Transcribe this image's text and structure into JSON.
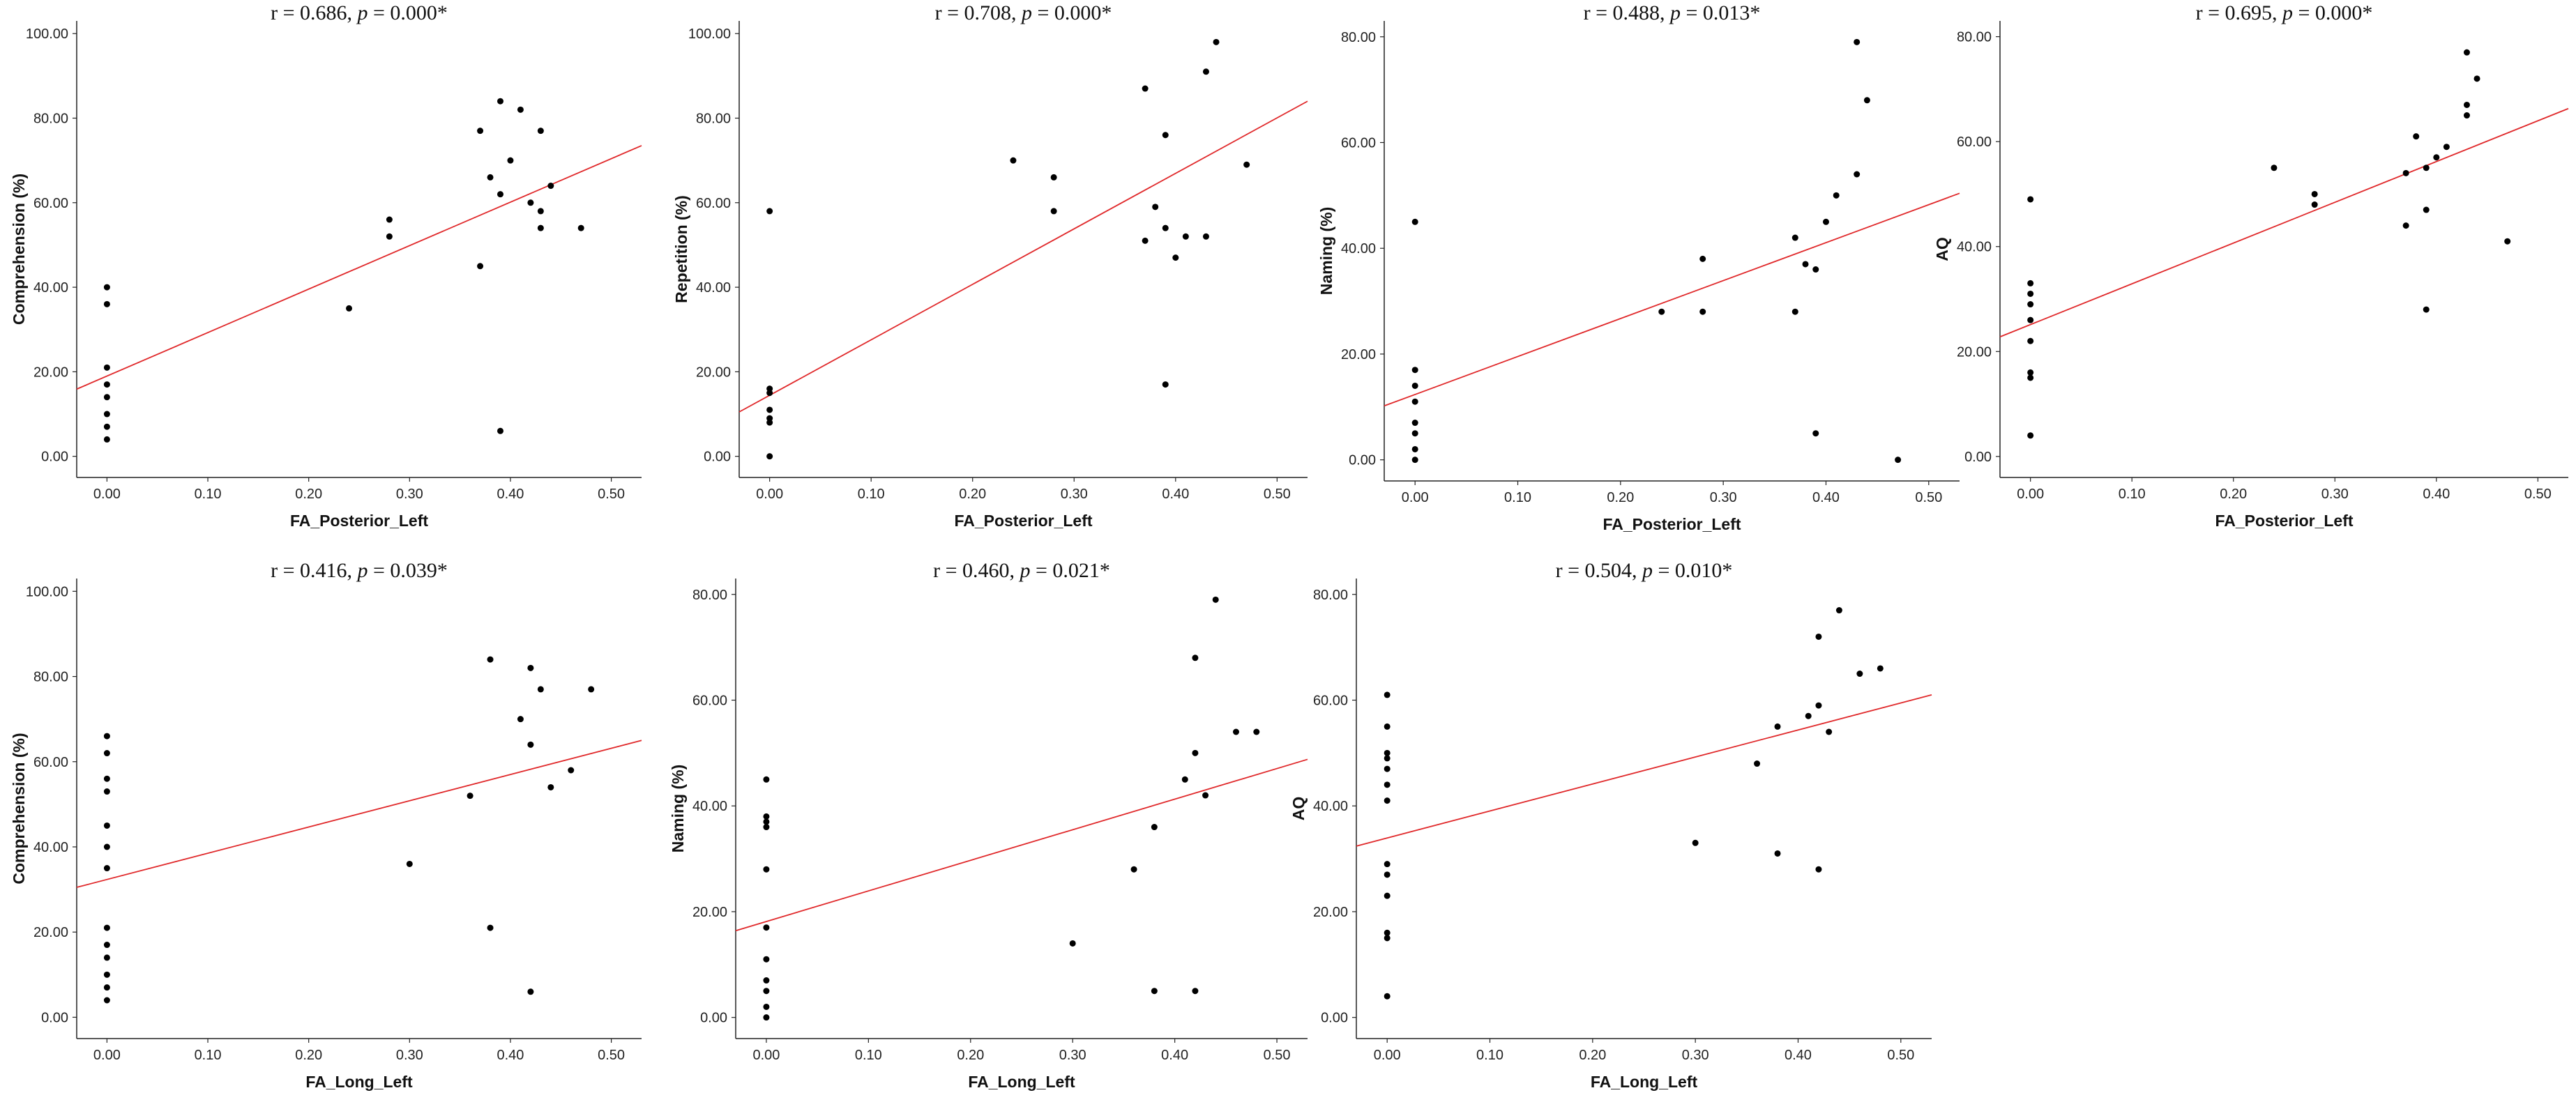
{
  "chart_data": [
    {
      "type": "scatter",
      "title": {
        "prefix": "r = 0.686, ",
        "p_label": "p",
        "suffix": " = 0.000*"
      },
      "xlabel": "FA_Posterior_Left",
      "ylabel": "Comprehension (%)",
      "xlim": [
        -0.03,
        0.53
      ],
      "ylim": [
        -5,
        103
      ],
      "xticks": [
        0,
        0.1,
        0.2,
        0.3,
        0.4,
        0.5
      ],
      "xtick_labels": [
        "0.00",
        "0.10",
        "0.20",
        "0.30",
        "0.40",
        "0.50"
      ],
      "yticks": [
        0,
        20,
        40,
        60,
        80,
        100
      ],
      "ytick_labels": [
        "0.00",
        "20.00",
        "40.00",
        "60.00",
        "80.00",
        "100.00"
      ],
      "points": [
        [
          0,
          40
        ],
        [
          0,
          36
        ],
        [
          0,
          21
        ],
        [
          0,
          17
        ],
        [
          0,
          14
        ],
        [
          0,
          10
        ],
        [
          0,
          7
        ],
        [
          0,
          4
        ],
        [
          0.24,
          35
        ],
        [
          0.28,
          56
        ],
        [
          0.28,
          52
        ],
        [
          0.37,
          77
        ],
        [
          0.37,
          45
        ],
        [
          0.38,
          66
        ],
        [
          0.39,
          84
        ],
        [
          0.39,
          62
        ],
        [
          0.39,
          6
        ],
        [
          0.4,
          70
        ],
        [
          0.41,
          82
        ],
        [
          0.42,
          60
        ],
        [
          0.43,
          77
        ],
        [
          0.43,
          58
        ],
        [
          0.43,
          54
        ],
        [
          0.44,
          64
        ],
        [
          0.47,
          54
        ]
      ],
      "fit_line": {
        "x": [
          -0.03,
          0.53
        ],
        "y": [
          15.9,
          73.5
        ]
      },
      "point_color": "#000000",
      "line_color": "#e0282a"
    },
    {
      "type": "scatter",
      "title": {
        "prefix": "r = 0.708, ",
        "p_label": "p",
        "suffix": " = 0.000*"
      },
      "xlabel": "FA_Posterior_Left",
      "ylabel": "Repetition (%)",
      "xlim": [
        -0.03,
        0.53
      ],
      "ylim": [
        -5,
        103
      ],
      "xticks": [
        0,
        0.1,
        0.2,
        0.3,
        0.4,
        0.5
      ],
      "xtick_labels": [
        "0.00",
        "0.10",
        "0.20",
        "0.30",
        "0.40",
        "0.50"
      ],
      "yticks": [
        0,
        20,
        40,
        60,
        80,
        100
      ],
      "ytick_labels": [
        "0.00",
        "20.00",
        "40.00",
        "60.00",
        "80.00",
        "100.00"
      ],
      "points": [
        [
          0,
          58
        ],
        [
          0,
          16
        ],
        [
          0,
          15
        ],
        [
          0,
          11
        ],
        [
          0,
          9
        ],
        [
          0,
          8
        ],
        [
          0,
          0
        ],
        [
          0.24,
          70
        ],
        [
          0.28,
          66
        ],
        [
          0.28,
          58
        ],
        [
          0.37,
          87
        ],
        [
          0.37,
          51
        ],
        [
          0.38,
          59
        ],
        [
          0.39,
          76
        ],
        [
          0.39,
          54
        ],
        [
          0.39,
          17
        ],
        [
          0.4,
          47
        ],
        [
          0.41,
          52
        ],
        [
          0.43,
          91
        ],
        [
          0.43,
          52
        ],
        [
          0.44,
          98
        ],
        [
          0.47,
          69
        ]
      ],
      "fit_line": {
        "x": [
          -0.03,
          0.53
        ],
        "y": [
          10.5,
          84
        ]
      },
      "point_color": "#000000",
      "line_color": "#e0282a"
    },
    {
      "type": "scatter",
      "title": {
        "prefix": "r = 0.488, ",
        "p_label": "p",
        "suffix": " = 0.013*"
      },
      "xlabel": "FA_Posterior_Left",
      "ylabel": "Naming (%)",
      "xlim": [
        -0.03,
        0.53
      ],
      "ylim": [
        -4,
        83
      ],
      "xticks": [
        0,
        0.1,
        0.2,
        0.3,
        0.4,
        0.5
      ],
      "xtick_labels": [
        "0.00",
        "0.10",
        "0.20",
        "0.30",
        "0.40",
        "0.50"
      ],
      "yticks": [
        0,
        20,
        40,
        60,
        80
      ],
      "ytick_labels": [
        "0.00",
        "20.00",
        "40.00",
        "60.00",
        "80.00"
      ],
      "points": [
        [
          0,
          45
        ],
        [
          0,
          17
        ],
        [
          0,
          14
        ],
        [
          0,
          11
        ],
        [
          0,
          7
        ],
        [
          0,
          5
        ],
        [
          0,
          2
        ],
        [
          0,
          0
        ],
        [
          0.24,
          28
        ],
        [
          0.28,
          38
        ],
        [
          0.28,
          28
        ],
        [
          0.37,
          42
        ],
        [
          0.37,
          28
        ],
        [
          0.38,
          37
        ],
        [
          0.39,
          36
        ],
        [
          0.39,
          5
        ],
        [
          0.4,
          45
        ],
        [
          0.41,
          50
        ],
        [
          0.43,
          79
        ],
        [
          0.43,
          54
        ],
        [
          0.44,
          68
        ],
        [
          0.47,
          0
        ]
      ],
      "fit_line": {
        "x": [
          -0.03,
          0.53
        ],
        "y": [
          10.2,
          50.4
        ]
      },
      "point_color": "#000000",
      "line_color": "#e0282a"
    },
    {
      "type": "scatter",
      "title": {
        "prefix": "r = 0.695, ",
        "p_label": "p",
        "suffix": " = 0.000*"
      },
      "xlabel": "FA_Posterior_Left",
      "ylabel": "AQ",
      "xlim": [
        -0.03,
        0.53
      ],
      "ylim": [
        -4,
        83
      ],
      "xticks": [
        0,
        0.1,
        0.2,
        0.3,
        0.4,
        0.5
      ],
      "xtick_labels": [
        "0.00",
        "0.10",
        "0.20",
        "0.30",
        "0.40",
        "0.50"
      ],
      "yticks": [
        0,
        20,
        40,
        60,
        80
      ],
      "ytick_labels": [
        "0.00",
        "20.00",
        "40.00",
        "60.00",
        "80.00"
      ],
      "points": [
        [
          0,
          49
        ],
        [
          0,
          33
        ],
        [
          0,
          31
        ],
        [
          0,
          29
        ],
        [
          0,
          26
        ],
        [
          0,
          22
        ],
        [
          0,
          16
        ],
        [
          0,
          15
        ],
        [
          0,
          4
        ],
        [
          0.24,
          55
        ],
        [
          0.28,
          50
        ],
        [
          0.28,
          48
        ],
        [
          0.37,
          54
        ],
        [
          0.37,
          44
        ],
        [
          0.38,
          61
        ],
        [
          0.39,
          55
        ],
        [
          0.39,
          47
        ],
        [
          0.39,
          28
        ],
        [
          0.4,
          57
        ],
        [
          0.41,
          59
        ],
        [
          0.43,
          77
        ],
        [
          0.43,
          67
        ],
        [
          0.43,
          65
        ],
        [
          0.44,
          72
        ],
        [
          0.47,
          41
        ]
      ],
      "fit_line": {
        "x": [
          -0.03,
          0.53
        ],
        "y": [
          22.8,
          66.3
        ]
      },
      "point_color": "#000000",
      "line_color": "#e0282a"
    },
    {
      "type": "scatter",
      "title": {
        "prefix": "r = 0.416, ",
        "p_label": "p",
        "suffix": " = 0.039*"
      },
      "xlabel": "FA_Long_Left",
      "ylabel": "Comprehension (%)",
      "xlim": [
        -0.03,
        0.53
      ],
      "ylim": [
        -5,
        103
      ],
      "xticks": [
        0,
        0.1,
        0.2,
        0.3,
        0.4,
        0.5
      ],
      "xtick_labels": [
        "0.00",
        "0.10",
        "0.20",
        "0.30",
        "0.40",
        "0.50"
      ],
      "yticks": [
        0,
        20,
        40,
        60,
        80,
        100
      ],
      "ytick_labels": [
        "0.00",
        "20.00",
        "40.00",
        "60.00",
        "80.00",
        "100.00"
      ],
      "points": [
        [
          0,
          66
        ],
        [
          0,
          62
        ],
        [
          0,
          56
        ],
        [
          0,
          53
        ],
        [
          0,
          45
        ],
        [
          0,
          40
        ],
        [
          0,
          35
        ],
        [
          0,
          21
        ],
        [
          0,
          17
        ],
        [
          0,
          14
        ],
        [
          0,
          10
        ],
        [
          0,
          7
        ],
        [
          0,
          4
        ],
        [
          0.3,
          36
        ],
        [
          0.36,
          52
        ],
        [
          0.38,
          84
        ],
        [
          0.38,
          21
        ],
        [
          0.41,
          70
        ],
        [
          0.42,
          82
        ],
        [
          0.42,
          64
        ],
        [
          0.42,
          6
        ],
        [
          0.43,
          77
        ],
        [
          0.44,
          54
        ],
        [
          0.46,
          58
        ],
        [
          0.48,
          77
        ]
      ],
      "fit_line": {
        "x": [
          -0.03,
          0.53
        ],
        "y": [
          30.5,
          65
        ]
      },
      "point_color": "#000000",
      "line_color": "#e0282a"
    },
    {
      "type": "scatter",
      "title": {
        "prefix": "r = 0.460, ",
        "p_label": "p",
        "suffix": " = 0.021*"
      },
      "xlabel": "FA_Long_Left",
      "ylabel": "Naming (%)",
      "xlim": [
        -0.03,
        0.53
      ],
      "ylim": [
        -4,
        83
      ],
      "xticks": [
        0,
        0.1,
        0.2,
        0.3,
        0.4,
        0.5
      ],
      "xtick_labels": [
        "0.00",
        "0.10",
        "0.20",
        "0.30",
        "0.40",
        "0.50"
      ],
      "yticks": [
        0,
        20,
        40,
        60,
        80
      ],
      "ytick_labels": [
        "0.00",
        "20.00",
        "40.00",
        "60.00",
        "80.00"
      ],
      "points": [
        [
          0,
          45
        ],
        [
          0,
          38
        ],
        [
          0,
          37
        ],
        [
          0,
          36
        ],
        [
          0,
          28
        ],
        [
          0,
          17
        ],
        [
          0,
          11
        ],
        [
          0,
          7
        ],
        [
          0,
          5
        ],
        [
          0,
          2
        ],
        [
          0,
          0
        ],
        [
          0.3,
          14
        ],
        [
          0.36,
          28
        ],
        [
          0.38,
          36
        ],
        [
          0.38,
          5
        ],
        [
          0.41,
          45
        ],
        [
          0.42,
          68
        ],
        [
          0.42,
          50
        ],
        [
          0.42,
          5
        ],
        [
          0.43,
          42
        ],
        [
          0.44,
          79
        ],
        [
          0.46,
          54
        ],
        [
          0.48,
          54
        ]
      ],
      "fit_line": {
        "x": [
          -0.03,
          0.53
        ],
        "y": [
          16.4,
          48.8
        ]
      },
      "point_color": "#000000",
      "line_color": "#e0282a"
    },
    {
      "type": "scatter",
      "title": {
        "prefix": "r = 0.504, ",
        "p_label": "p",
        "suffix": " = 0.010*"
      },
      "xlabel": "FA_Long_Left",
      "ylabel": "AQ",
      "xlim": [
        -0.03,
        0.53
      ],
      "ylim": [
        -4,
        83
      ],
      "xticks": [
        0,
        0.1,
        0.2,
        0.3,
        0.4,
        0.5
      ],
      "xtick_labels": [
        "0.00",
        "0.10",
        "0.20",
        "0.30",
        "0.40",
        "0.50"
      ],
      "yticks": [
        0,
        20,
        40,
        60,
        80
      ],
      "ytick_labels": [
        "0.00",
        "20.00",
        "40.00",
        "60.00",
        "80.00"
      ],
      "points": [
        [
          0,
          61
        ],
        [
          0,
          55
        ],
        [
          0,
          50
        ],
        [
          0,
          49
        ],
        [
          0,
          47
        ],
        [
          0,
          44
        ],
        [
          0,
          41
        ],
        [
          0,
          29
        ],
        [
          0,
          27
        ],
        [
          0,
          23
        ],
        [
          0,
          16
        ],
        [
          0,
          15
        ],
        [
          0,
          4
        ],
        [
          0.3,
          33
        ],
        [
          0.36,
          48
        ],
        [
          0.38,
          55
        ],
        [
          0.38,
          31
        ],
        [
          0.41,
          57
        ],
        [
          0.42,
          72
        ],
        [
          0.42,
          59
        ],
        [
          0.42,
          28
        ],
        [
          0.43,
          54
        ],
        [
          0.44,
          77
        ],
        [
          0.46,
          65
        ],
        [
          0.48,
          66
        ]
      ],
      "fit_line": {
        "x": [
          -0.03,
          0.53
        ],
        "y": [
          32.4,
          61
        ]
      },
      "point_color": "#000000",
      "line_color": "#e0282a"
    }
  ]
}
